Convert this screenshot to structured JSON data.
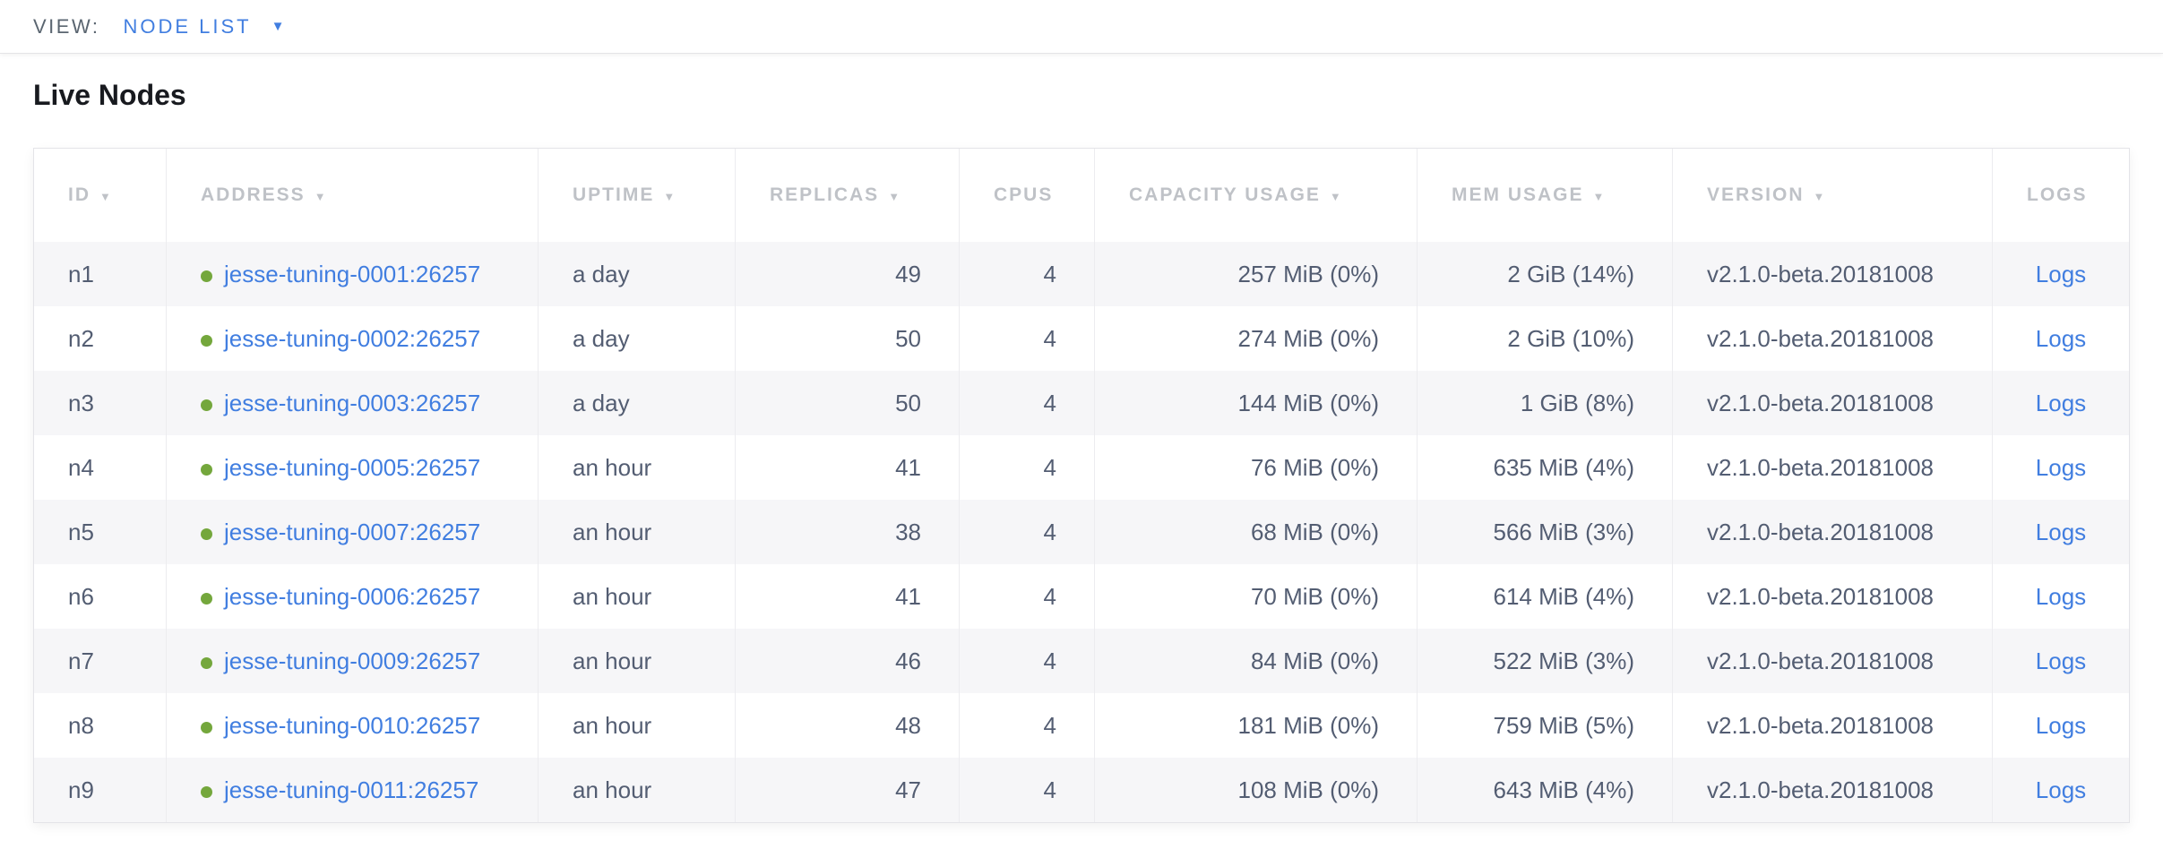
{
  "view_bar": {
    "label": "VIEW:",
    "selected": "NODE LIST"
  },
  "page": {
    "title": "Live Nodes"
  },
  "icons": {
    "sort_desc": "▼",
    "dropdown_caret": "▼"
  },
  "table": {
    "columns": [
      {
        "key": "id",
        "label": "ID",
        "sortable": true
      },
      {
        "key": "address",
        "label": "ADDRESS",
        "sortable": true
      },
      {
        "key": "uptime",
        "label": "UPTIME",
        "sortable": true
      },
      {
        "key": "replicas",
        "label": "REPLICAS",
        "sortable": true
      },
      {
        "key": "cpus",
        "label": "CPUS",
        "sortable": false
      },
      {
        "key": "capacity",
        "label": "CAPACITY USAGE",
        "sortable": true
      },
      {
        "key": "mem",
        "label": "MEM USAGE",
        "sortable": true
      },
      {
        "key": "version",
        "label": "VERSION",
        "sortable": true
      },
      {
        "key": "logs",
        "label": "LOGS",
        "sortable": false
      }
    ],
    "rows": [
      {
        "id": "n1",
        "status": "live",
        "address": "jesse-tuning-0001:26257",
        "uptime": "a day",
        "replicas": "49",
        "cpus": "4",
        "capacity": "257 MiB (0%)",
        "mem": "2 GiB (14%)",
        "version": "v2.1.0-beta.20181008",
        "logs": "Logs"
      },
      {
        "id": "n2",
        "status": "live",
        "address": "jesse-tuning-0002:26257",
        "uptime": "a day",
        "replicas": "50",
        "cpus": "4",
        "capacity": "274 MiB (0%)",
        "mem": "2 GiB (10%)",
        "version": "v2.1.0-beta.20181008",
        "logs": "Logs"
      },
      {
        "id": "n3",
        "status": "live",
        "address": "jesse-tuning-0003:26257",
        "uptime": "a day",
        "replicas": "50",
        "cpus": "4",
        "capacity": "144 MiB (0%)",
        "mem": "1 GiB (8%)",
        "version": "v2.1.0-beta.20181008",
        "logs": "Logs"
      },
      {
        "id": "n4",
        "status": "live",
        "address": "jesse-tuning-0005:26257",
        "uptime": "an hour",
        "replicas": "41",
        "cpus": "4",
        "capacity": "76 MiB (0%)",
        "mem": "635 MiB (4%)",
        "version": "v2.1.0-beta.20181008",
        "logs": "Logs"
      },
      {
        "id": "n5",
        "status": "live",
        "address": "jesse-tuning-0007:26257",
        "uptime": "an hour",
        "replicas": "38",
        "cpus": "4",
        "capacity": "68 MiB (0%)",
        "mem": "566 MiB (3%)",
        "version": "v2.1.0-beta.20181008",
        "logs": "Logs"
      },
      {
        "id": "n6",
        "status": "live",
        "address": "jesse-tuning-0006:26257",
        "uptime": "an hour",
        "replicas": "41",
        "cpus": "4",
        "capacity": "70 MiB (0%)",
        "mem": "614 MiB (4%)",
        "version": "v2.1.0-beta.20181008",
        "logs": "Logs"
      },
      {
        "id": "n7",
        "status": "live",
        "address": "jesse-tuning-0009:26257",
        "uptime": "an hour",
        "replicas": "46",
        "cpus": "4",
        "capacity": "84 MiB (0%)",
        "mem": "522 MiB (3%)",
        "version": "v2.1.0-beta.20181008",
        "logs": "Logs"
      },
      {
        "id": "n8",
        "status": "live",
        "address": "jesse-tuning-0010:26257",
        "uptime": "an hour",
        "replicas": "48",
        "cpus": "4",
        "capacity": "181 MiB (0%)",
        "mem": "759 MiB (5%)",
        "version": "v2.1.0-beta.20181008",
        "logs": "Logs"
      },
      {
        "id": "n9",
        "status": "live",
        "address": "jesse-tuning-0011:26257",
        "uptime": "an hour",
        "replicas": "47",
        "cpus": "4",
        "capacity": "108 MiB (0%)",
        "mem": "643 MiB (4%)",
        "version": "v2.1.0-beta.20181008",
        "logs": "Logs"
      }
    ]
  },
  "colors": {
    "link_blue": "#417ee0",
    "status_green": "#74a73c",
    "header_gray": "#bfc2c7",
    "cell_text": "#535d72",
    "view_label": "#5a6570",
    "row_stripe": "#f6f6f8"
  }
}
